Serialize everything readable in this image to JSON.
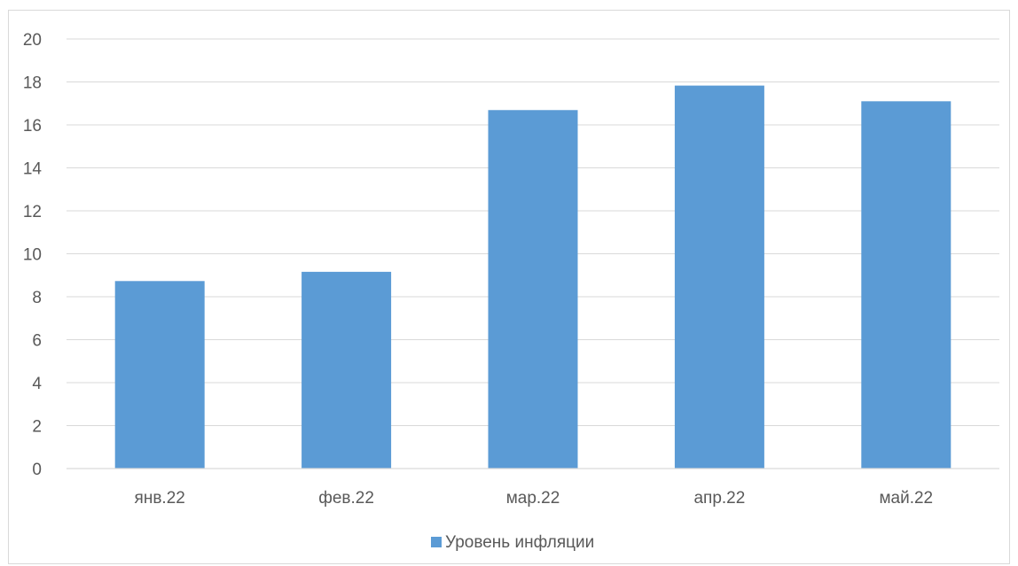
{
  "chart_data": {
    "type": "bar",
    "title": "",
    "xlabel": "",
    "ylabel": "",
    "categories": [
      "янв.22",
      "фев.22",
      "мар.22",
      "апр.22",
      "май.22"
    ],
    "series": [
      {
        "name": "Уровень инфляции",
        "values": [
          8.73,
          9.16,
          16.69,
          17.83,
          17.1
        ],
        "color": "#5b9bd5"
      }
    ],
    "ylim": [
      0,
      20
    ],
    "yticks": [
      0,
      2,
      4,
      6,
      8,
      10,
      12,
      14,
      16,
      18,
      20
    ],
    "grid": true,
    "legend_position": "bottom"
  }
}
